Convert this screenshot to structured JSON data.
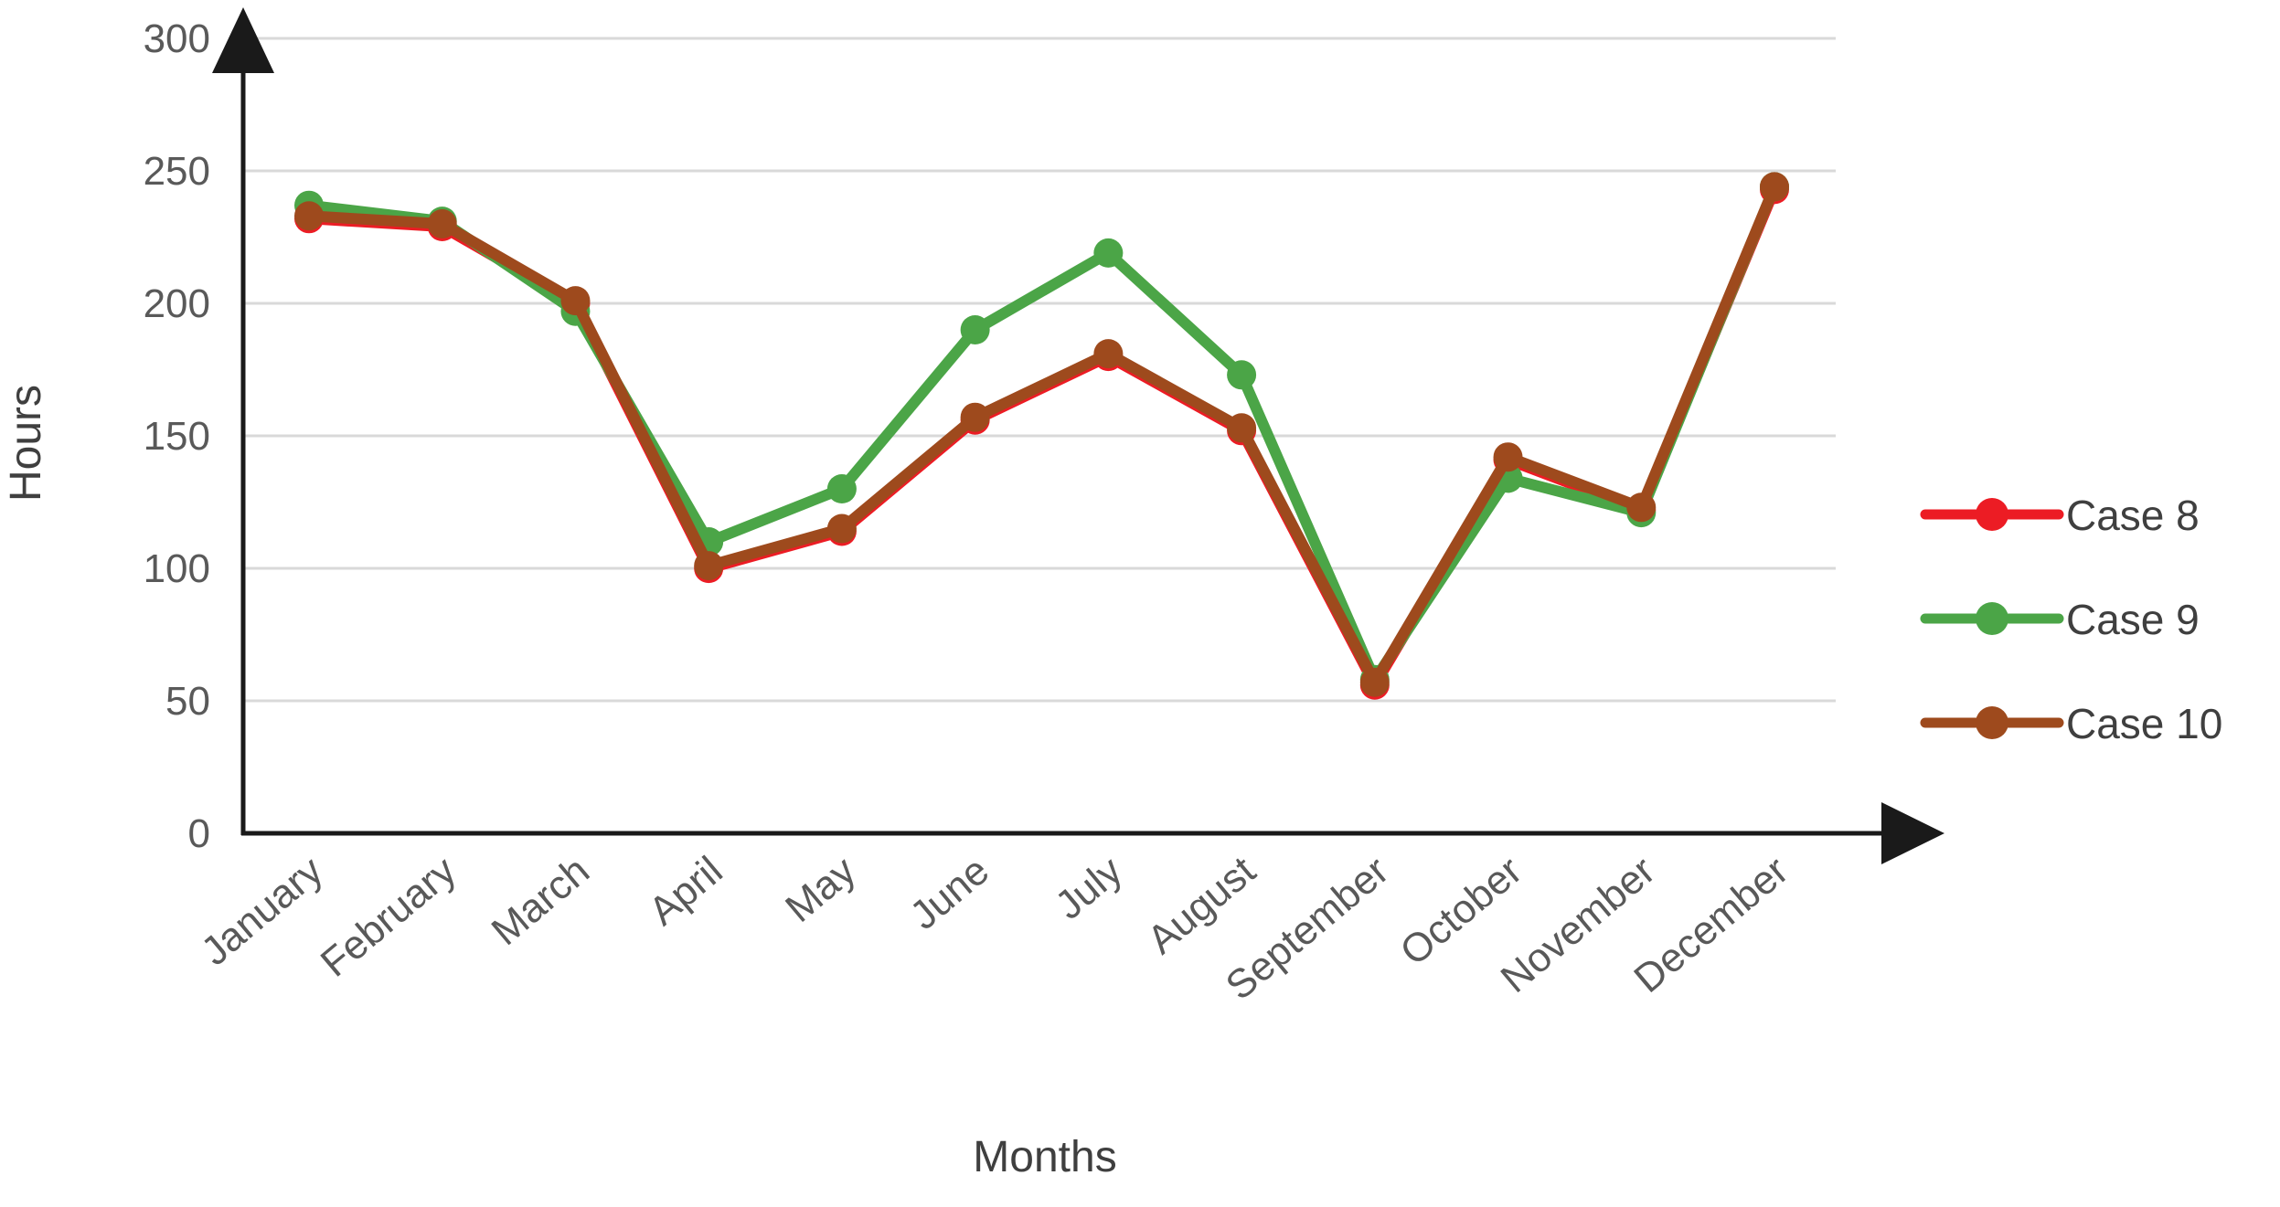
{
  "figure": {
    "background": "#ffffff",
    "grid_color": "#d9d9d9",
    "axis_color": "#1a1a1a",
    "tick_text_color": "#595959",
    "title_text_color": "#3f3f3f"
  },
  "chart_data": {
    "type": "line",
    "title": "",
    "xlabel": "Months",
    "ylabel": "Hours",
    "categories": [
      "January",
      "February",
      "March",
      "April",
      "May",
      "June",
      "July",
      "August",
      "September",
      "October",
      "November",
      "December"
    ],
    "yticks": [
      0,
      50,
      100,
      150,
      200,
      250,
      300
    ],
    "ylim": [
      0,
      300
    ],
    "grid": true,
    "legend_position": "right",
    "marker": "circle",
    "series": [
      {
        "name": "Case 8",
        "color": "#ec1c24",
        "values": [
          233,
          230,
          201,
          101,
          115,
          157,
          181,
          153,
          57,
          142,
          123,
          244
        ]
      },
      {
        "name": "Case 9",
        "color": "#4ba547",
        "values": [
          237,
          231,
          197,
          110,
          130,
          190,
          219,
          173,
          58,
          134,
          121,
          244
        ]
      },
      {
        "name": "Case 10",
        "color": "#9e4a1d",
        "values": [
          233,
          230,
          201,
          101,
          115,
          157,
          181,
          153,
          57,
          142,
          123,
          244
        ]
      }
    ]
  }
}
